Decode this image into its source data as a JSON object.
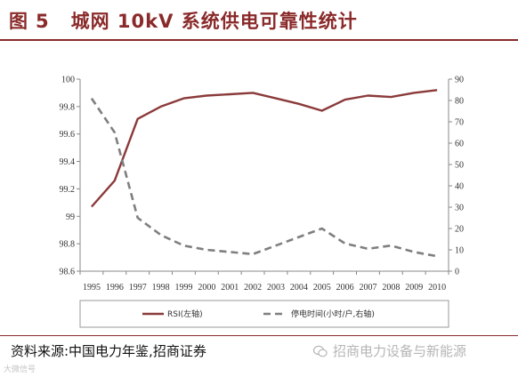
{
  "header": {
    "figure_label": "图",
    "figure_number": "5",
    "title": "城网 10kV 系统供电可靠性统计"
  },
  "chart_data": {
    "type": "line",
    "x": [
      1995,
      1996,
      1997,
      1998,
      1999,
      2000,
      2001,
      2002,
      2003,
      2004,
      2005,
      2006,
      2007,
      2008,
      2009,
      2010
    ],
    "x_tick_labels": [
      "1995",
      "1996",
      "1997",
      "1998",
      "1999",
      "2000",
      "2001",
      "2002",
      "2003",
      "2004",
      "2005",
      "2006",
      "2007",
      "2008",
      "2009",
      "2010"
    ],
    "y_left_lim": [
      98.6,
      100
    ],
    "y_left_ticks": [
      "98.6",
      "98.8",
      "99",
      "99.2",
      "99.4",
      "99.6",
      "99.8",
      "100"
    ],
    "y_right_lim": [
      0,
      90
    ],
    "y_right_ticks": [
      "0",
      "10",
      "20",
      "30",
      "40",
      "50",
      "60",
      "70",
      "80",
      "90"
    ],
    "grid": false,
    "legend_position": "bottom",
    "series": [
      {
        "name": "RSI(左轴)",
        "axis": "left",
        "style": "solid",
        "color": "#8b3a3a",
        "values": [
          99.07,
          99.26,
          99.71,
          99.8,
          99.86,
          99.88,
          99.89,
          99.9,
          99.86,
          99.82,
          99.77,
          99.85,
          99.88,
          99.87,
          99.9,
          99.92
        ]
      },
      {
        "name": "停电时间(小时/户,右轴)",
        "axis": "right",
        "style": "dashed",
        "color": "#7f7f7f",
        "values": [
          81,
          65,
          25,
          17,
          12,
          10,
          9,
          8,
          12,
          16,
          20,
          13,
          10.5,
          12,
          9,
          7
        ]
      }
    ]
  },
  "footer": {
    "source": "资料来源:中国电力年鉴,招商证券",
    "watermark": "招商电力设备与新能源",
    "watermark_small": "大微信号"
  }
}
